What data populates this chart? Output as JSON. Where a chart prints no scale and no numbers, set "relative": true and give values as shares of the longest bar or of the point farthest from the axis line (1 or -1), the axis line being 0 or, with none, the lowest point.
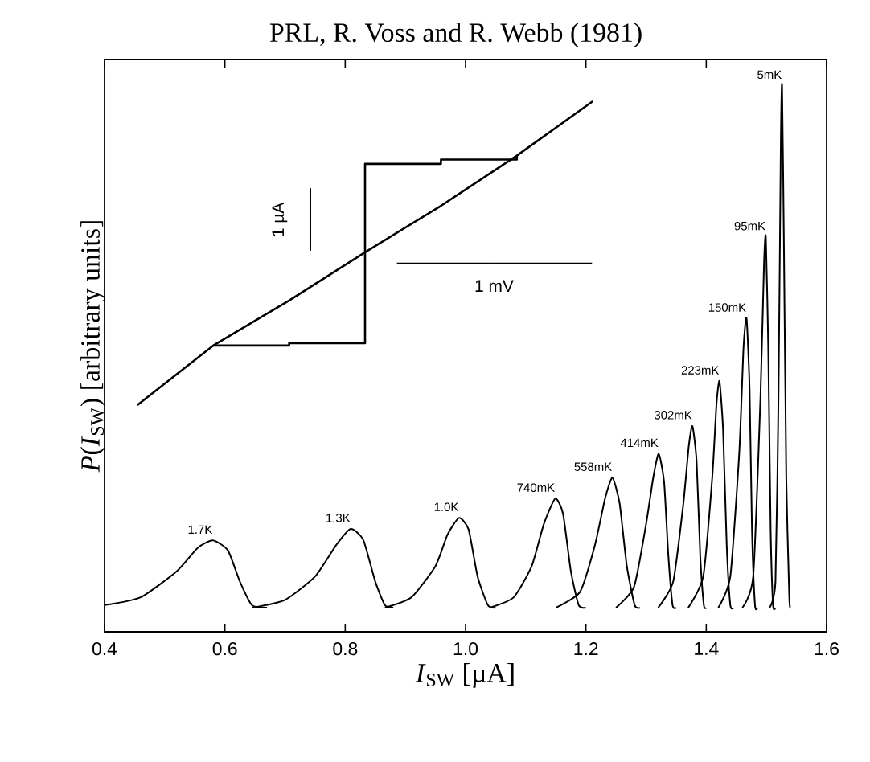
{
  "chart_data": [
    {
      "type": "line",
      "title": "PRL, R. Voss and R. Webb (1981)",
      "xlabel": "*I*$_{SW}$ [µA]",
      "ylabel": "*P*(*I*$_{SW}$) [arbitrary units]",
      "relative": true,
      "xlim": [
        0.4,
        1.6
      ],
      "xticks": [
        0.4,
        0.6,
        0.8,
        {
          "value": 1.0,
          "label": "1.0"
        },
        1.2,
        1.4,
        1.6
      ],
      "legend": false,
      "grid": false,
      "marker": "none",
      "line_style": "solid",
      "series": [
        {
          "name": "1.7K",
          "color": "#000000",
          "x": [
            0.4,
            0.46,
            0.52,
            0.555,
            0.58,
            0.605,
            0.625,
            0.645,
            0.67
          ],
          "values": [
            0.005,
            0.02,
            0.07,
            0.115,
            0.129,
            0.11,
            0.05,
            0.005,
            0
          ]
        },
        {
          "name": "1.3K",
          "color": "#000000",
          "x": [
            0.645,
            0.7,
            0.75,
            0.785,
            0.809,
            0.83,
            0.85,
            0.866,
            0.88
          ],
          "values": [
            0,
            0.015,
            0.06,
            0.12,
            0.151,
            0.13,
            0.05,
            0.005,
            0
          ]
        },
        {
          "name": "1.0K",
          "color": "#000000",
          "x": [
            0.866,
            0.91,
            0.95,
            0.97,
            0.989,
            1.005,
            1.02,
            1.037,
            1.05
          ],
          "values": [
            0,
            0.02,
            0.08,
            0.14,
            0.172,
            0.15,
            0.06,
            0.005,
            0
          ]
        },
        {
          "name": "740mK",
          "color": "#000000",
          "x": [
            1.04,
            1.08,
            1.11,
            1.13,
            1.149,
            1.162,
            1.175,
            1.188,
            1.2
          ],
          "values": [
            0,
            0.02,
            0.08,
            0.16,
            0.209,
            0.18,
            0.07,
            0.005,
            0
          ]
        },
        {
          "name": "558mK",
          "color": "#000000",
          "x": [
            1.15,
            1.19,
            1.215,
            1.232,
            1.244,
            1.256,
            1.268,
            1.281,
            1.29
          ],
          "values": [
            0,
            0.03,
            0.12,
            0.21,
            0.249,
            0.2,
            0.08,
            0.005,
            0
          ]
        },
        {
          "name": "414mK",
          "color": "#000000",
          "x": [
            1.25,
            1.28,
            1.3,
            1.312,
            1.321,
            1.33,
            1.337,
            1.344,
            1.35
          ],
          "values": [
            0,
            0.04,
            0.16,
            0.25,
            0.295,
            0.24,
            0.1,
            0.005,
            0
          ]
        },
        {
          "name": "302mK",
          "color": "#000000",
          "x": [
            1.32,
            1.345,
            1.362,
            1.371,
            1.377,
            1.384,
            1.39,
            1.396,
            1.4
          ],
          "values": [
            0,
            0.05,
            0.2,
            0.31,
            0.348,
            0.28,
            0.1,
            0.005,
            0
          ]
        },
        {
          "name": "223mK",
          "color": "#000000",
          "x": [
            1.37,
            1.395,
            1.41,
            1.417,
            1.422,
            1.428,
            1.434,
            1.44,
            1.445
          ],
          "values": [
            0,
            0.06,
            0.25,
            0.39,
            0.434,
            0.34,
            0.12,
            0.005,
            0
          ]
        },
        {
          "name": "150mK",
          "color": "#000000",
          "x": [
            1.42,
            1.44,
            1.455,
            1.462,
            1.467,
            1.472,
            1.476,
            1.481,
            1.485
          ],
          "values": [
            0,
            0.06,
            0.3,
            0.5,
            0.554,
            0.42,
            0.15,
            0.005,
            0
          ]
        },
        {
          "name": "95mK",
          "color": "#000000",
          "x": [
            1.46,
            1.478,
            1.49,
            1.496,
            1.499,
            1.503,
            1.507,
            1.511,
            1.515
          ],
          "values": [
            0,
            0.06,
            0.4,
            0.66,
            0.71,
            0.5,
            0.15,
            0.005,
            0
          ]
        },
        {
          "name": "5mK",
          "color": "#000000",
          "x": [
            1.505,
            1.515,
            1.52,
            1.524,
            1.526,
            1.529,
            1.533,
            1.538,
            1.54
          ],
          "values": [
            0,
            0.05,
            0.4,
            0.9,
            1.0,
            0.7,
            0.25,
            0.02,
            0
          ]
        }
      ]
    },
    {
      "type": "line",
      "relative": true,
      "categories": [
        null,
        null,
        null,
        null,
        null,
        null,
        null
      ],
      "legend": false,
      "grid": false,
      "marker": "none",
      "line_style": "solid",
      "annotations": [
        "1 µA",
        "1 mV"
      ],
      "series": [
        {
          "color": "#000000",
          "values": [
            0,
            0.196,
            0.344,
            0.503,
            0.656,
            0.821,
            1.0
          ]
        },
        {
          "type": "step",
          "color": "#000000",
          "values": [
            null,
            0.196,
            0.204,
            0.794,
            0.808,
            0.821,
            null
          ]
        }
      ]
    }
  ]
}
